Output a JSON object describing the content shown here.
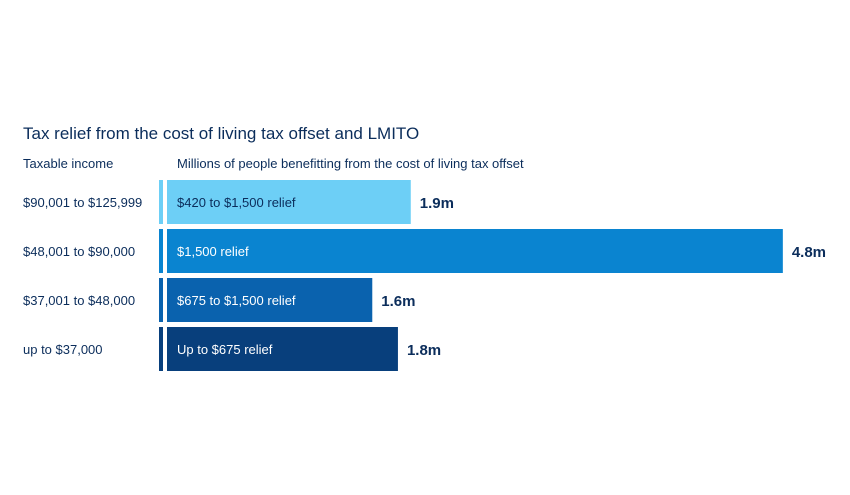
{
  "chart_data": {
    "type": "bar",
    "orientation": "horizontal",
    "title": "Tax relief from the cost of living tax offset and LMITO",
    "category_header": "Taxable income",
    "value_header": "Millions of people benefitting from the cost of living tax offset",
    "categories": [
      "$90,001 to $125,999",
      "$48,001 to $90,000",
      "$37,001 to $48,000",
      "up to $37,000"
    ],
    "values": [
      1.9,
      4.8,
      1.6,
      1.8
    ],
    "value_labels": [
      "1.9m",
      "4.8m",
      "1.6m",
      "1.8m"
    ],
    "bar_labels": [
      "$420 to $1,500 relief",
      "$1,500 relief",
      "$675 to $1,500 relief",
      "Up to $675 relief"
    ],
    "colors": [
      "#6dcff6",
      "#0a84d0",
      "#0a62ae",
      "#083f7c"
    ],
    "bar_text_colors": [
      "#0b2d5b",
      "#ffffff",
      "#ffffff",
      "#ffffff"
    ],
    "unit": "millions",
    "grid": false,
    "legend": "none"
  }
}
